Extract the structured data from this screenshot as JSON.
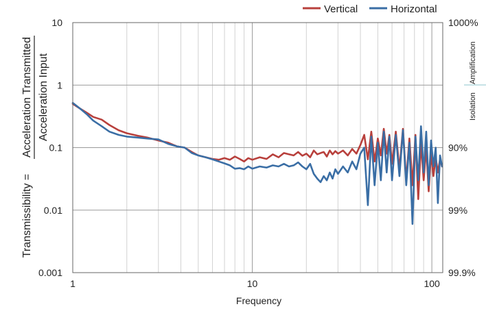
{
  "chart_data": {
    "type": "line",
    "xlabel": "Frequency",
    "ylabel": {
      "prefix": "Transmissibility =",
      "numerator": "Acceleration Transmitted",
      "denominator": "Acceleration Input"
    },
    "right_axis_label": {
      "left": "Isolation",
      "right": "Amplification"
    },
    "x_scale": "log",
    "y_scale": "log",
    "xlim": [
      1,
      115
    ],
    "ylim": [
      0.001,
      10
    ],
    "x_ticks": [
      {
        "value": 1,
        "label": "1"
      },
      {
        "value": 10,
        "label": "10"
      },
      {
        "value": 100,
        "label": "100"
      }
    ],
    "y_ticks": [
      {
        "value": 10,
        "label": "10"
      },
      {
        "value": 1,
        "label": "1"
      },
      {
        "value": 0.1,
        "label": "0.1"
      },
      {
        "value": 0.01,
        "label": "0.01"
      },
      {
        "value": 0.001,
        "label": "0.001"
      }
    ],
    "right_ticks": [
      {
        "value": 10,
        "label": "1000%"
      },
      {
        "value": 0.1,
        "label": "90%"
      },
      {
        "value": 0.01,
        "label": "99%"
      },
      {
        "value": 0.001,
        "label": "99.9%"
      }
    ],
    "grid": true,
    "legend_position": "top-right",
    "series": [
      {
        "name": "Vertical",
        "color": "#b8403c",
        "x": [
          1,
          1.1,
          1.2,
          1.3,
          1.45,
          1.6,
          1.8,
          2,
          2.3,
          2.6,
          3,
          3.4,
          3.8,
          4.2,
          4.6,
          5,
          5.5,
          6,
          6.5,
          7,
          7.5,
          8,
          8.5,
          9,
          9.5,
          10,
          11,
          12,
          13,
          14,
          15,
          16,
          17,
          18,
          19,
          20,
          21,
          22,
          23,
          24,
          25,
          26,
          27,
          28,
          29,
          30,
          32,
          34,
          36,
          38,
          40,
          42,
          44,
          46,
          48,
          50,
          52,
          54,
          56,
          58,
          60,
          63,
          66,
          69,
          72,
          75,
          78,
          81,
          84,
          87,
          90,
          93,
          96,
          99,
          102,
          105,
          108,
          111,
          114
        ],
        "values": [
          0.5,
          0.42,
          0.36,
          0.31,
          0.28,
          0.23,
          0.19,
          0.17,
          0.155,
          0.145,
          0.13,
          0.12,
          0.105,
          0.1,
          0.085,
          0.075,
          0.07,
          0.066,
          0.064,
          0.068,
          0.064,
          0.072,
          0.066,
          0.06,
          0.068,
          0.064,
          0.07,
          0.066,
          0.078,
          0.07,
          0.082,
          0.078,
          0.075,
          0.085,
          0.074,
          0.08,
          0.07,
          0.09,
          0.078,
          0.082,
          0.085,
          0.072,
          0.09,
          0.078,
          0.088,
          0.08,
          0.09,
          0.075,
          0.095,
          0.08,
          0.11,
          0.16,
          0.065,
          0.18,
          0.06,
          0.14,
          0.075,
          0.2,
          0.08,
          0.16,
          0.055,
          0.18,
          0.045,
          0.2,
          0.03,
          0.14,
          0.025,
          0.16,
          0.015,
          0.12,
          0.03,
          0.1,
          0.02,
          0.08,
          0.035,
          0.07,
          0.04,
          0.065,
          0.05
        ]
      },
      {
        "name": "Horizontal",
        "color": "#3a6ea5",
        "x": [
          1,
          1.1,
          1.2,
          1.3,
          1.45,
          1.6,
          1.8,
          2,
          2.3,
          2.6,
          3,
          3.4,
          3.8,
          4.2,
          4.6,
          5,
          5.5,
          6,
          6.5,
          7,
          7.5,
          8,
          8.5,
          9,
          9.5,
          10,
          11,
          12,
          13,
          14,
          15,
          16,
          17,
          18,
          19,
          20,
          21,
          22,
          23,
          24,
          25,
          26,
          27,
          28,
          29,
          30,
          32,
          34,
          36,
          38,
          40,
          42,
          44,
          46,
          48,
          50,
          52,
          54,
          56,
          58,
          60,
          63,
          66,
          69,
          72,
          75,
          78,
          81,
          84,
          87,
          90,
          93,
          96,
          99,
          102,
          105,
          108,
          111,
          114
        ],
        "values": [
          0.52,
          0.42,
          0.34,
          0.27,
          0.22,
          0.18,
          0.16,
          0.15,
          0.145,
          0.14,
          0.135,
          0.115,
          0.105,
          0.1,
          0.082,
          0.075,
          0.07,
          0.065,
          0.06,
          0.056,
          0.052,
          0.046,
          0.047,
          0.045,
          0.05,
          0.046,
          0.05,
          0.048,
          0.052,
          0.05,
          0.055,
          0.05,
          0.052,
          0.058,
          0.05,
          0.045,
          0.055,
          0.038,
          0.032,
          0.028,
          0.035,
          0.03,
          0.04,
          0.032,
          0.045,
          0.038,
          0.05,
          0.04,
          0.06,
          0.045,
          0.08,
          0.1,
          0.012,
          0.15,
          0.025,
          0.12,
          0.03,
          0.18,
          0.04,
          0.15,
          0.03,
          0.16,
          0.035,
          0.19,
          0.025,
          0.12,
          0.006,
          0.15,
          0.03,
          0.22,
          0.04,
          0.18,
          0.025,
          0.13,
          0.05,
          0.1,
          0.013,
          0.075,
          0.05
        ]
      }
    ]
  }
}
